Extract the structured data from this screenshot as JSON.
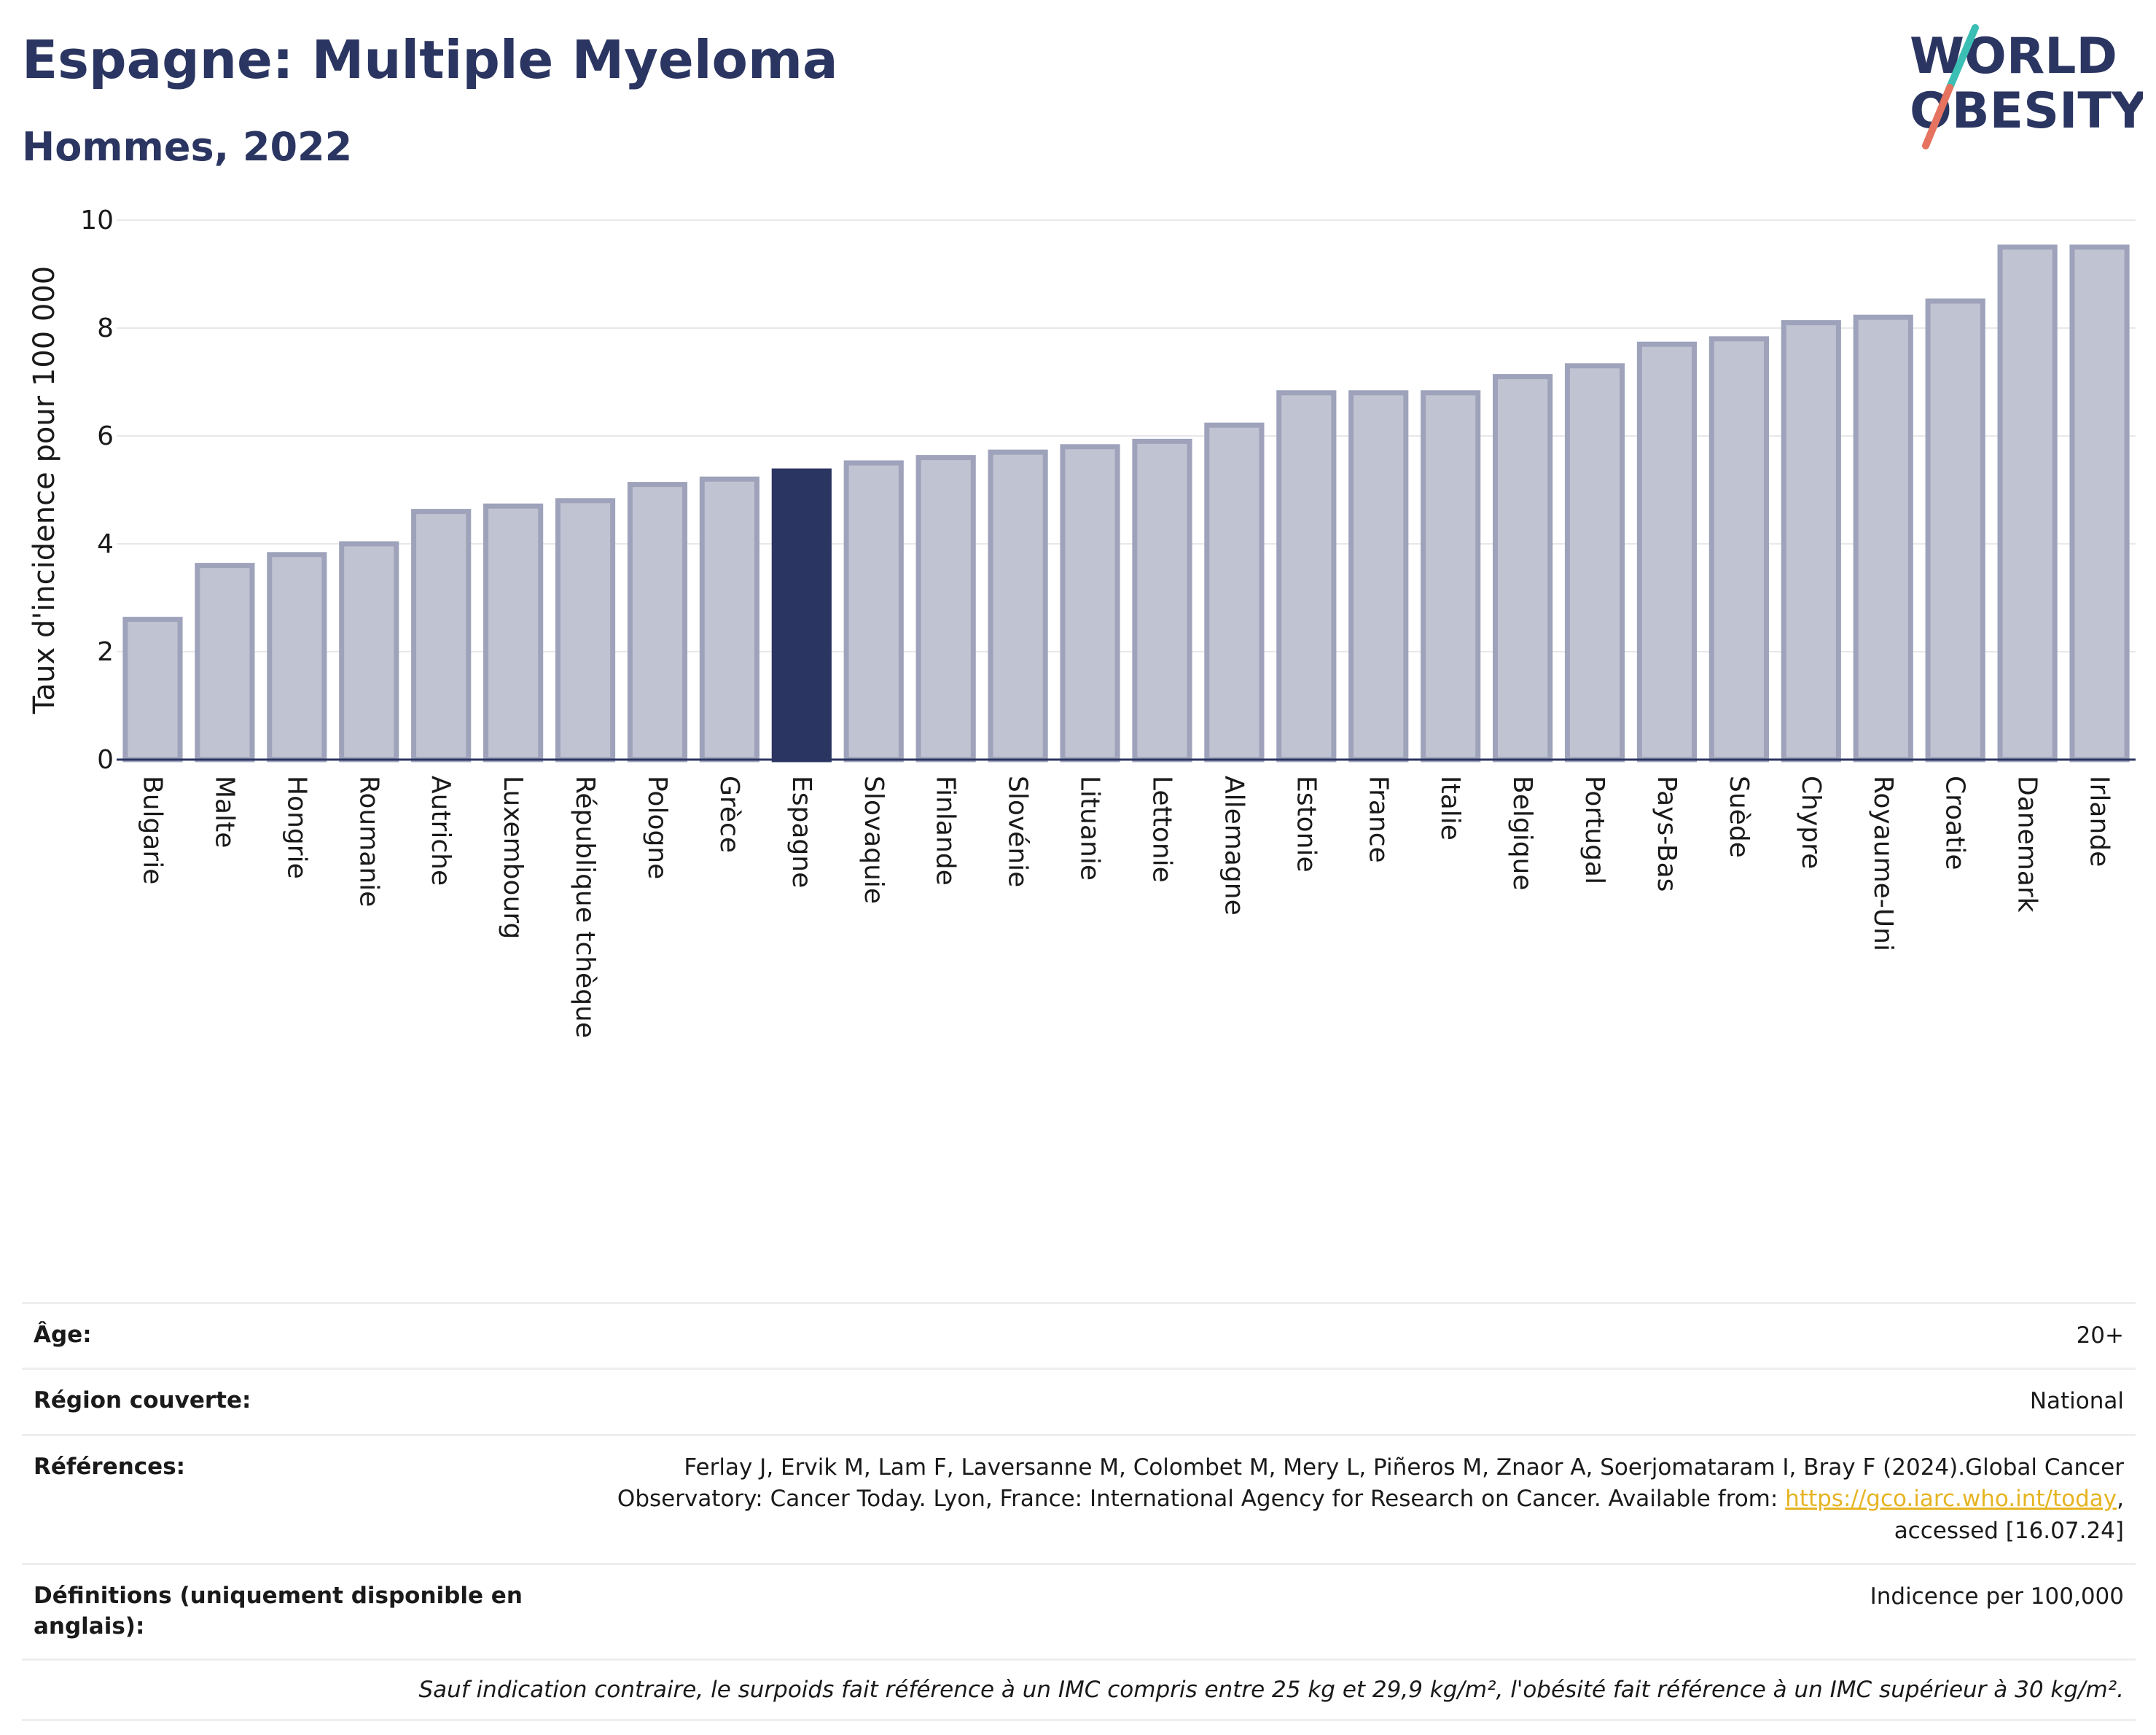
{
  "header": {
    "title": "Espagne: Multiple Myeloma",
    "subtitle": "Hommes, 2022",
    "logo_line1": "WORLD",
    "logo_line2": "OBESITY"
  },
  "colors": {
    "highlight": "#2b3561",
    "bar": "#c0c3d1",
    "bar_stroke": "#9ea3bb",
    "brand_teal": "#3bbfb5",
    "brand_coral": "#e5735f"
  },
  "chart_data": {
    "type": "bar",
    "ylabel": "Taux d'incidence pour 100 000",
    "ylim": [
      0,
      10
    ],
    "yticks": [
      "0",
      "2",
      "4",
      "6",
      "8",
      "10"
    ],
    "grid": true,
    "highlight": "Espagne",
    "categories": [
      "Bulgarie",
      "Malte",
      "Hongrie",
      "Roumanie",
      "Autriche",
      "Luxembourg",
      "République tchèque",
      "Pologne",
      "Grèce",
      "Espagne",
      "Slovaquie",
      "Finlande",
      "Slovénie",
      "Lituanie",
      "Lettonie",
      "Allemagne",
      "Estonie",
      "France",
      "Italie",
      "Belgique",
      "Portugal",
      "Pays-Bas",
      "Suède",
      "Chypre",
      "Royaume-Uni",
      "Croatie",
      "Danemark",
      "Irlande"
    ],
    "values": [
      2.6,
      3.6,
      3.8,
      4.0,
      4.6,
      4.7,
      4.8,
      5.1,
      5.2,
      5.35,
      5.5,
      5.6,
      5.7,
      5.8,
      5.9,
      6.2,
      6.8,
      6.8,
      6.8,
      7.1,
      7.3,
      7.7,
      7.8,
      8.1,
      8.2,
      8.5,
      9.5,
      9.5
    ]
  },
  "info": {
    "age_label": "Âge:",
    "age_value": "20+",
    "region_label": "Région couverte:",
    "region_value": "National",
    "refs_label": "Références:",
    "refs_text1": "Ferlay J, Ervik M, Lam F, Laversanne M, Colombet M, Mery L, Piñeros M, Znaor A, Soerjomataram I, Bray F (2024).Global Cancer",
    "refs_text2": "Observatory: Cancer Today. Lyon, France: International Agency for Research on Cancer. Available from: ",
    "refs_link": "https://gco.iarc.who.int/today",
    "refs_text3": ",",
    "refs_text4": "accessed [16.07.24]",
    "defs_label": "Définitions (uniquement disponible en anglais):",
    "defs_value": "Indicence per 100,000",
    "note": "Sauf indication contraire, le surpoids fait référence à un IMC compris entre 25 kg et 29,9 kg/m², l'obésité fait référence à un IMC supérieur à 30 kg/m²."
  }
}
